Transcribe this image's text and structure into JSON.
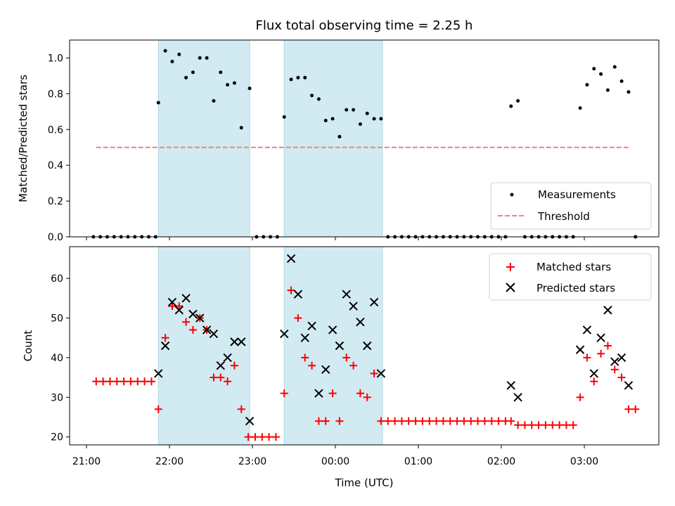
{
  "chart_data": [
    {
      "type": "scatter",
      "title": "Flux total observing time = 2.25 h",
      "ylabel": "Matched/Predicted stars",
      "xlabel": "",
      "ylim": [
        0,
        1.1
      ],
      "yticks": [
        "0.0",
        "0.2",
        "0.4",
        "0.6",
        "0.8",
        "1.0"
      ],
      "grid": false,
      "legend_position": "lower-right",
      "shaded_intervals": [
        [
          "21:52",
          "22:58"
        ],
        [
          "23:23",
          "00:34"
        ]
      ],
      "shade_color": "#add8e6",
      "series": [
        {
          "name": "Measurements",
          "marker": "dot",
          "color": "#000000",
          "points": [
            [
              "21:05",
              0.0
            ],
            [
              "21:10",
              0.0
            ],
            [
              "21:15",
              0.0
            ],
            [
              "21:20",
              0.0
            ],
            [
              "21:25",
              0.0
            ],
            [
              "21:30",
              0.0
            ],
            [
              "21:35",
              0.0
            ],
            [
              "21:40",
              0.0
            ],
            [
              "21:45",
              0.0
            ],
            [
              "21:50",
              0.0
            ],
            [
              "21:52",
              0.75
            ],
            [
              "21:57",
              1.04
            ],
            [
              "22:02",
              0.98
            ],
            [
              "22:07",
              1.02
            ],
            [
              "22:12",
              0.89
            ],
            [
              "22:17",
              0.92
            ],
            [
              "22:22",
              1.0
            ],
            [
              "22:27",
              1.0
            ],
            [
              "22:32",
              0.76
            ],
            [
              "22:37",
              0.92
            ],
            [
              "22:42",
              0.85
            ],
            [
              "22:47",
              0.86
            ],
            [
              "22:52",
              0.61
            ],
            [
              "22:58",
              0.83
            ],
            [
              "23:03",
              0.0
            ],
            [
              "23:08",
              0.0
            ],
            [
              "23:13",
              0.0
            ],
            [
              "23:18",
              0.0
            ],
            [
              "23:23",
              0.67
            ],
            [
              "23:28",
              0.88
            ],
            [
              "23:33",
              0.89
            ],
            [
              "23:38",
              0.89
            ],
            [
              "23:43",
              0.79
            ],
            [
              "23:48",
              0.77
            ],
            [
              "23:53",
              0.65
            ],
            [
              "23:58",
              0.66
            ],
            [
              "00:03",
              0.56
            ],
            [
              "00:08",
              0.71
            ],
            [
              "00:13",
              0.71
            ],
            [
              "00:18",
              0.63
            ],
            [
              "00:23",
              0.69
            ],
            [
              "00:28",
              0.66
            ],
            [
              "00:33",
              0.66
            ],
            [
              "00:38",
              0.0
            ],
            [
              "00:43",
              0.0
            ],
            [
              "00:48",
              0.0
            ],
            [
              "00:53",
              0.0
            ],
            [
              "00:58",
              0.0
            ],
            [
              "01:03",
              0.0
            ],
            [
              "01:08",
              0.0
            ],
            [
              "01:13",
              0.0
            ],
            [
              "01:18",
              0.0
            ],
            [
              "01:23",
              0.0
            ],
            [
              "01:28",
              0.0
            ],
            [
              "01:33",
              0.0
            ],
            [
              "01:38",
              0.0
            ],
            [
              "01:43",
              0.0
            ],
            [
              "01:48",
              0.0
            ],
            [
              "01:53",
              0.0
            ],
            [
              "01:58",
              0.0
            ],
            [
              "02:03",
              0.0
            ],
            [
              "02:07",
              0.73
            ],
            [
              "02:12",
              0.76
            ],
            [
              "02:17",
              0.0
            ],
            [
              "02:22",
              0.0
            ],
            [
              "02:27",
              0.0
            ],
            [
              "02:32",
              0.0
            ],
            [
              "02:37",
              0.0
            ],
            [
              "02:42",
              0.0
            ],
            [
              "02:47",
              0.0
            ],
            [
              "02:52",
              0.0
            ],
            [
              "02:57",
              0.72
            ],
            [
              "03:02",
              0.85
            ],
            [
              "03:07",
              0.94
            ],
            [
              "03:12",
              0.91
            ],
            [
              "03:17",
              0.82
            ],
            [
              "03:22",
              0.95
            ],
            [
              "03:27",
              0.87
            ],
            [
              "03:32",
              0.81
            ],
            [
              "03:37",
              0.0
            ]
          ]
        },
        {
          "name": "Threshold",
          "marker": "dashed-line",
          "color": "#f08080",
          "points": [
            [
              "21:07",
              0.5
            ],
            [
              "03:32",
              0.5
            ]
          ]
        }
      ]
    },
    {
      "type": "scatter",
      "title": "",
      "ylabel": "Count",
      "xlabel": "Time (UTC)",
      "ylim": [
        18,
        68
      ],
      "yticks": [
        "20",
        "30",
        "40",
        "50",
        "60"
      ],
      "xticks": [
        "21:00",
        "22:00",
        "23:00",
        "00:00",
        "01:00",
        "02:00",
        "03:00"
      ],
      "grid": false,
      "legend_position": "top-right",
      "shaded_intervals": [
        [
          "21:52",
          "22:58"
        ],
        [
          "23:23",
          "00:34"
        ]
      ],
      "shade_color": "#add8e6",
      "series": [
        {
          "name": "Matched stars",
          "marker": "plus",
          "color": "#ff0000",
          "points": [
            [
              "21:07",
              34
            ],
            [
              "21:12",
              34
            ],
            [
              "21:17",
              34
            ],
            [
              "21:22",
              34
            ],
            [
              "21:27",
              34
            ],
            [
              "21:32",
              34
            ],
            [
              "21:37",
              34
            ],
            [
              "21:42",
              34
            ],
            [
              "21:47",
              34
            ],
            [
              "21:52",
              27
            ],
            [
              "21:57",
              45
            ],
            [
              "22:02",
              53
            ],
            [
              "22:07",
              53
            ],
            [
              "22:12",
              49
            ],
            [
              "22:17",
              47
            ],
            [
              "22:22",
              50
            ],
            [
              "22:27",
              47
            ],
            [
              "22:32",
              35
            ],
            [
              "22:37",
              35
            ],
            [
              "22:42",
              34
            ],
            [
              "22:47",
              38
            ],
            [
              "22:52",
              27
            ],
            [
              "22:57",
              20
            ],
            [
              "23:02",
              20
            ],
            [
              "23:07",
              20
            ],
            [
              "23:12",
              20
            ],
            [
              "23:17",
              20
            ],
            [
              "23:23",
              31
            ],
            [
              "23:28",
              57
            ],
            [
              "23:33",
              50
            ],
            [
              "23:38",
              40
            ],
            [
              "23:43",
              38
            ],
            [
              "23:48",
              24
            ],
            [
              "23:53",
              24
            ],
            [
              "23:58",
              31
            ],
            [
              "00:03",
              24
            ],
            [
              "00:08",
              40
            ],
            [
              "00:13",
              38
            ],
            [
              "00:18",
              31
            ],
            [
              "00:23",
              30
            ],
            [
              "00:28",
              36
            ],
            [
              "00:33",
              24
            ],
            [
              "00:38",
              24
            ],
            [
              "00:43",
              24
            ],
            [
              "00:48",
              24
            ],
            [
              "00:53",
              24
            ],
            [
              "00:58",
              24
            ],
            [
              "01:03",
              24
            ],
            [
              "01:08",
              24
            ],
            [
              "01:13",
              24
            ],
            [
              "01:18",
              24
            ],
            [
              "01:23",
              24
            ],
            [
              "01:28",
              24
            ],
            [
              "01:33",
              24
            ],
            [
              "01:38",
              24
            ],
            [
              "01:43",
              24
            ],
            [
              "01:48",
              24
            ],
            [
              "01:53",
              24
            ],
            [
              "01:58",
              24
            ],
            [
              "02:03",
              24
            ],
            [
              "02:07",
              24
            ],
            [
              "02:12",
              23
            ],
            [
              "02:17",
              23
            ],
            [
              "02:22",
              23
            ],
            [
              "02:27",
              23
            ],
            [
              "02:32",
              23
            ],
            [
              "02:37",
              23
            ],
            [
              "02:42",
              23
            ],
            [
              "02:47",
              23
            ],
            [
              "02:52",
              23
            ],
            [
              "02:57",
              30
            ],
            [
              "03:02",
              40
            ],
            [
              "03:07",
              34
            ],
            [
              "03:12",
              41
            ],
            [
              "03:17",
              43
            ],
            [
              "03:22",
              37
            ],
            [
              "03:27",
              35
            ],
            [
              "03:32",
              27
            ],
            [
              "03:37",
              27
            ]
          ]
        },
        {
          "name": "Predicted stars",
          "marker": "x",
          "color": "#000000",
          "points": [
            [
              "21:52",
              36
            ],
            [
              "21:57",
              43
            ],
            [
              "22:02",
              54
            ],
            [
              "22:07",
              52
            ],
            [
              "22:12",
              55
            ],
            [
              "22:17",
              51
            ],
            [
              "22:22",
              50
            ],
            [
              "22:27",
              47
            ],
            [
              "22:32",
              46
            ],
            [
              "22:37",
              38
            ],
            [
              "22:42",
              40
            ],
            [
              "22:47",
              44
            ],
            [
              "22:52",
              44
            ],
            [
              "22:58",
              24
            ],
            [
              "23:23",
              46
            ],
            [
              "23:28",
              65
            ],
            [
              "23:33",
              56
            ],
            [
              "23:38",
              45
            ],
            [
              "23:43",
              48
            ],
            [
              "23:48",
              31
            ],
            [
              "23:53",
              37
            ],
            [
              "23:58",
              47
            ],
            [
              "00:03",
              43
            ],
            [
              "00:08",
              56
            ],
            [
              "00:13",
              53
            ],
            [
              "00:18",
              49
            ],
            [
              "00:23",
              43
            ],
            [
              "00:28",
              54
            ],
            [
              "00:33",
              36
            ],
            [
              "02:07",
              33
            ],
            [
              "02:12",
              30
            ],
            [
              "02:57",
              42
            ],
            [
              "03:02",
              47
            ],
            [
              "03:07",
              36
            ],
            [
              "03:12",
              45
            ],
            [
              "03:17",
              52
            ],
            [
              "03:22",
              39
            ],
            [
              "03:27",
              40
            ],
            [
              "03:32",
              33
            ]
          ]
        }
      ]
    }
  ]
}
